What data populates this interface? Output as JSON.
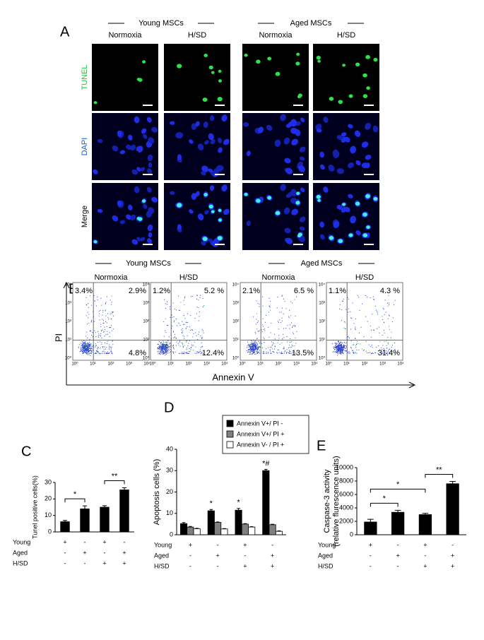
{
  "panel_a": {
    "label": "A",
    "groups": [
      "Young  MSCs",
      "Aged MSCs"
    ],
    "conditions": [
      "Normoxia",
      "H/SD",
      "Normoxia",
      "H/SD"
    ],
    "rows": [
      "TUNEL",
      "DAPI",
      "Merge"
    ]
  },
  "panel_b": {
    "label": "B",
    "groups": [
      "Young  MSCs",
      "Aged MSCs"
    ],
    "x_label": "Annexin V",
    "y_label": "PI",
    "ticks": [
      "10⁰",
      "10¹",
      "10²",
      "10³",
      "10⁴"
    ],
    "plots": [
      {
        "condition": "Normoxia",
        "quadrants": [
          "3.4%",
          "2.9%",
          "4.8%"
        ]
      },
      {
        "condition": "H/SD",
        "quadrants": [
          "1.2%",
          "5.2 %",
          "12.4%"
        ]
      },
      {
        "condition": "Normoxia",
        "quadrants": [
          "2.1%",
          "6.5 %",
          "13.5%"
        ]
      },
      {
        "condition": "H/SD",
        "quadrants": [
          "1.1%",
          "4.3 %",
          "31.4%"
        ]
      }
    ]
  },
  "chart_data": [
    {
      "type": "bar",
      "panel": "C",
      "ylabel": "Tunel positive cells(%)",
      "values": [
        6.2,
        14,
        15,
        25.5
      ],
      "errors": [
        0.8,
        1.8,
        0.9,
        1.3
      ],
      "color": "#000000",
      "ylim": [
        0,
        30
      ],
      "yticks": [
        0,
        10,
        20,
        30
      ],
      "conditions": [
        {
          "name": "Young",
          "marks": [
            "+",
            "-",
            "+",
            "-"
          ]
        },
        {
          "name": "Aged",
          "marks": [
            "-",
            "+",
            "-",
            "+"
          ]
        },
        {
          "name": "H/SD",
          "marks": [
            "-",
            "-",
            "+",
            "+"
          ]
        }
      ],
      "annotations": [
        {
          "text": "*",
          "between": [
            0,
            1
          ]
        },
        {
          "text": "**",
          "between": [
            2,
            3
          ]
        }
      ]
    },
    {
      "type": "bar",
      "panel": "D",
      "ylabel": "Apoptosis cells (%)",
      "series": [
        {
          "name": "Annexin V+/ PI -",
          "color": "#000000",
          "values": [
            5.2,
            11.2,
            11.5,
            30
          ],
          "errors": [
            0.5,
            0.6,
            0.8,
            0.6
          ]
        },
        {
          "name": "Annexin V+/ PI +",
          "color": "#808080",
          "values": [
            3.6,
            5.8,
            5,
            4.7
          ],
          "errors": [
            0.3,
            0.2,
            0.2,
            0.2
          ]
        },
        {
          "name": "Annexin V- / PI +",
          "color": "#ffffff",
          "values": [
            2.8,
            2.7,
            3.6,
            1.6
          ],
          "errors": [
            0.2,
            0.2,
            0.2,
            0.2
          ]
        }
      ],
      "ylim": [
        0,
        40
      ],
      "yticks": [
        0,
        10,
        20,
        30,
        40
      ],
      "conditions": [
        {
          "name": "Young",
          "marks": [
            "+",
            "-",
            "+",
            "-"
          ]
        },
        {
          "name": "Aged",
          "marks": [
            "-",
            "+",
            "-",
            "+"
          ]
        },
        {
          "name": "H/SD",
          "marks": [
            "-",
            "-",
            "+",
            "+"
          ]
        }
      ],
      "annotations": [
        {
          "text": "*",
          "index": 1
        },
        {
          "text": "*",
          "index": 2
        },
        {
          "text": "*#",
          "index": 3
        }
      ]
    },
    {
      "type": "bar",
      "panel": "E",
      "ylabel": "Caspase-3 activity",
      "ylabel_sub": "(relative flurescence units)",
      "values": [
        1900,
        3350,
        3000,
        7600
      ],
      "errors": [
        400,
        300,
        200,
        350
      ],
      "color": "#000000",
      "ylim": [
        0,
        10000
      ],
      "yticks": [
        0,
        2000,
        4000,
        6000,
        8000,
        10000
      ],
      "conditions": [
        {
          "name": "Young",
          "marks": [
            "+",
            "-",
            "+",
            "-"
          ]
        },
        {
          "name": "Aged",
          "marks": [
            "-",
            "+",
            "-",
            "+"
          ]
        },
        {
          "name": "H/SD",
          "marks": [
            "-",
            "-",
            "+",
            "+"
          ]
        }
      ],
      "annotations": [
        {
          "text": "*",
          "between": [
            0,
            1
          ]
        },
        {
          "text": "*",
          "between": [
            0,
            2
          ]
        },
        {
          "text": "**",
          "between": [
            2,
            3
          ]
        }
      ]
    }
  ]
}
